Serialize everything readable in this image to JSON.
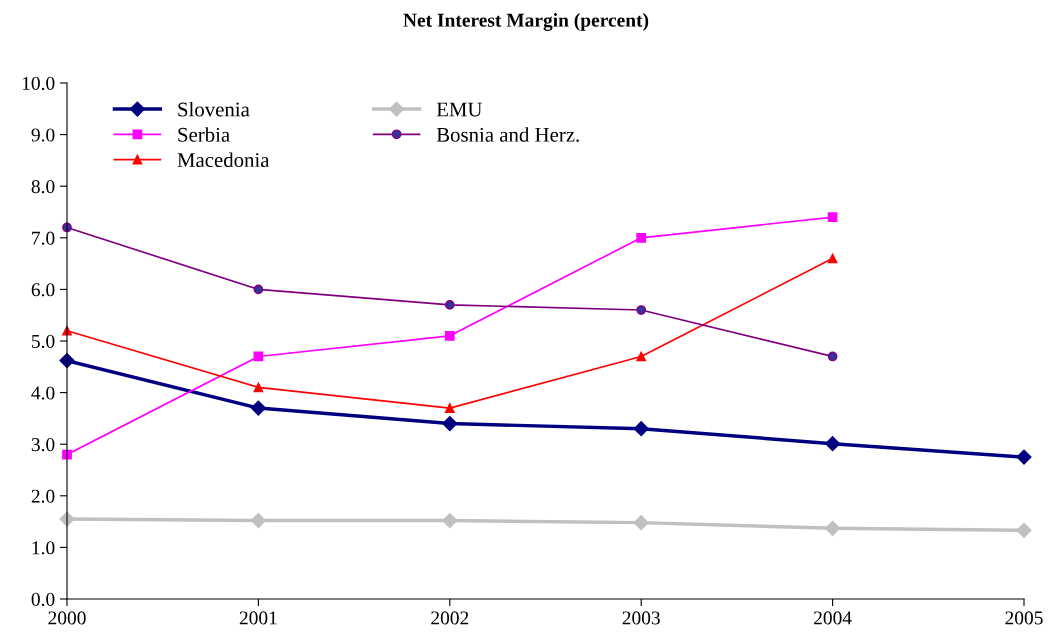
{
  "chart_data": {
    "type": "line",
    "title": "Net Interest Margin (percent)",
    "x": [
      2000,
      2001,
      2002,
      2003,
      2004,
      2005
    ],
    "xlim": [
      2000,
      2005
    ],
    "xticks": [
      2000,
      2001,
      2002,
      2003,
      2004,
      2005
    ],
    "ylim": [
      0,
      10
    ],
    "yticks": [
      {
        "value": 0,
        "label": "0.0"
      },
      {
        "value": 1,
        "label": "1.0"
      },
      {
        "value": 2,
        "label": "2.0"
      },
      {
        "value": 3,
        "label": "3.0"
      },
      {
        "value": 4,
        "label": "4.0"
      },
      {
        "value": 5,
        "label": "5.0"
      },
      {
        "value": 6,
        "label": "6.0"
      },
      {
        "value": 7,
        "label": "7.0"
      },
      {
        "value": 8,
        "label": "8.0"
      },
      {
        "value": 9,
        "label": "9.0"
      },
      {
        "value": 10,
        "label": "10.0"
      }
    ],
    "grid": false,
    "legend": "top left",
    "series": [
      {
        "name": "Slovenia",
        "color": "#000080",
        "marker": "diamond",
        "values": [
          4.62,
          3.7,
          3.4,
          3.3,
          3.01,
          2.75
        ]
      },
      {
        "name": "Serbia",
        "color": "#ff00ff",
        "marker": "square",
        "values": [
          2.8,
          4.7,
          5.1,
          7.0,
          7.4,
          null
        ]
      },
      {
        "name": "Macedonia",
        "color": "#ff0000",
        "marker": "triangle",
        "values": [
          5.2,
          4.1,
          3.7,
          4.7,
          6.6,
          null
        ]
      },
      {
        "name": "EMU",
        "color": "#c0c0c0",
        "marker": "diamond",
        "values": [
          1.55,
          1.52,
          1.52,
          1.48,
          1.37,
          1.33
        ]
      },
      {
        "name": "Bosnia and Herz.",
        "color": "#800080",
        "marker": "circle",
        "values": [
          7.2,
          6.0,
          5.7,
          5.6,
          4.7,
          null
        ]
      }
    ]
  }
}
